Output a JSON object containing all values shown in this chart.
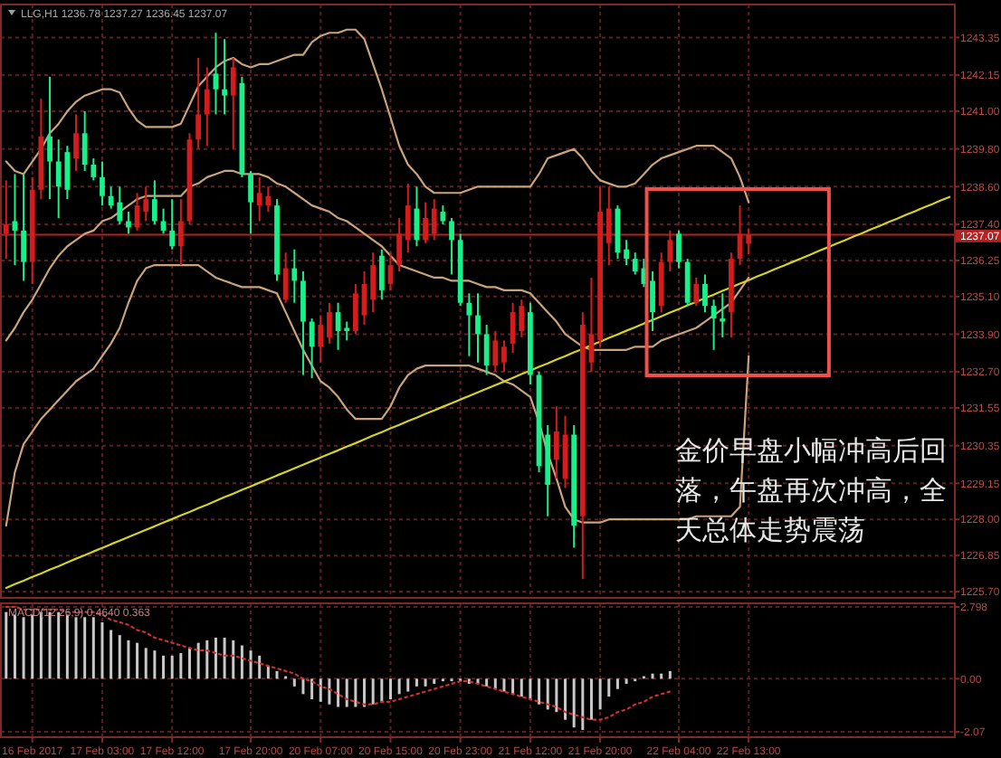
{
  "chart_data": [
    {
      "type": "candlestick",
      "title": "LLG,H1 1236.78 1237.27 1236.45 1237.07",
      "categories": [
        null,
        null,
        null,
        null,
        null,
        null,
        null,
        null,
        null,
        null,
        null,
        null,
        null,
        null,
        null,
        null,
        null,
        null,
        null,
        null,
        null,
        null,
        null,
        null,
        null,
        null,
        null,
        null,
        null,
        null,
        null,
        null,
        null,
        null,
        null,
        null,
        null,
        null,
        null,
        null,
        null,
        null,
        null,
        null,
        null,
        null,
        null,
        null,
        null,
        null,
        null,
        null,
        null,
        null,
        null,
        null,
        null,
        null,
        null,
        null,
        null,
        null,
        null,
        null,
        null,
        null,
        null,
        null,
        null,
        null,
        null,
        null,
        null,
        null,
        null,
        null,
        null,
        null,
        null,
        null,
        null,
        null,
        null,
        null,
        null,
        null,
        null,
        null,
        null,
        null,
        null,
        null,
        null,
        null,
        null,
        null,
        null,
        null,
        null,
        null,
        null,
        null,
        null,
        null,
        null,
        null,
        null,
        null,
        null
      ],
      "ohlc": [
        [
          1237.1,
          1238.8,
          1236.3,
          1237.4
        ],
        [
          1237.5,
          1239.0,
          1236.1,
          1237.2
        ],
        [
          1237.2,
          1239.0,
          1235.6,
          1236.2
        ],
        [
          1236.2,
          1238.9,
          1235.5,
          1238.5
        ],
        [
          1238.5,
          1241.4,
          1238.2,
          1240.2
        ],
        [
          1240.2,
          1242.1,
          1238.2,
          1239.4
        ],
        [
          1239.4,
          1240.1,
          1237.6,
          1238.6
        ],
        [
          1239.7,
          1239.9,
          1238.2,
          1238.5
        ],
        [
          1239.5,
          1240.9,
          1239.1,
          1240.3
        ],
        [
          1240.3,
          1241.0,
          1239.1,
          1239.3
        ],
        [
          1239.3,
          1239.5,
          1238.8,
          1238.9
        ],
        [
          1238.9,
          1239.4,
          1238.0,
          1238.3
        ],
        [
          1238.3,
          1238.6,
          1237.9,
          1238.0
        ],
        [
          1238.1,
          1238.6,
          1237.4,
          1237.5
        ],
        [
          1237.5,
          1237.8,
          1237.1,
          1237.3
        ],
        [
          1237.3,
          1238.4,
          1237.2,
          1238.0
        ],
        [
          1237.8,
          1238.6,
          1237.5,
          1238.2
        ],
        [
          1238.2,
          1238.8,
          1237.4,
          1237.5
        ],
        [
          1237.5,
          1237.9,
          1237.1,
          1237.2
        ],
        [
          1237.2,
          1238.2,
          1236.6,
          1236.7
        ],
        [
          1236.7,
          1238.2,
          1236.1,
          1237.5
        ],
        [
          1237.5,
          1240.3,
          1237.4,
          1240.1
        ],
        [
          1240.1,
          1242.7,
          1239.8,
          1240.9
        ],
        [
          1240.9,
          1242.4,
          1239.9,
          1241.7
        ],
        [
          1242.2,
          1243.5,
          1240.9,
          1241.7
        ],
        [
          1241.7,
          1243.3,
          1240.9,
          1241.5
        ],
        [
          1241.5,
          1242.7,
          1239.8,
          1242.4
        ],
        [
          1241.9,
          1242.1,
          1238.9,
          1239.0
        ],
        [
          1239.0,
          1239.1,
          1237.1,
          1238.1
        ],
        [
          1238.0,
          1238.9,
          1237.5,
          1238.4
        ],
        [
          1238.0,
          1238.6,
          1237.8,
          1238.3
        ],
        [
          1238.0,
          1238.2,
          1235.6,
          1235.8
        ],
        [
          1235.0,
          1236.5,
          1234.9,
          1236.0
        ],
        [
          1236.0,
          1236.6,
          1234.9,
          1235.6
        ],
        [
          1235.6,
          1235.9,
          1232.6,
          1234.3
        ],
        [
          1234.3,
          1234.4,
          1232.5,
          1233.5
        ],
        [
          1233.5,
          1234.5,
          1233.0,
          1234.2
        ],
        [
          1233.8,
          1234.9,
          1233.6,
          1234.6
        ],
        [
          1234.6,
          1234.9,
          1233.4,
          1234.0
        ],
        [
          1234.1,
          1234.3,
          1233.7,
          1234.0
        ],
        [
          1234.0,
          1235.5,
          1233.9,
          1235.2
        ],
        [
          1234.5,
          1235.9,
          1234.2,
          1235.5
        ],
        [
          1235.0,
          1236.5,
          1234.6,
          1236.1
        ],
        [
          1236.4,
          1236.6,
          1235.0,
          1235.3
        ],
        [
          1235.5,
          1236.5,
          1235.3,
          1236.1
        ],
        [
          1236.1,
          1237.6,
          1235.9,
          1237.1
        ],
        [
          1236.9,
          1238.7,
          1236.5,
          1238.0
        ],
        [
          1237.9,
          1238.6,
          1236.7,
          1236.9
        ],
        [
          1236.9,
          1238.1,
          1236.8,
          1237.6
        ],
        [
          1237.1,
          1238.2,
          1236.9,
          1237.9
        ],
        [
          1237.8,
          1238.0,
          1237.4,
          1237.5
        ],
        [
          1237.5,
          1237.6,
          1235.8,
          1236.9
        ],
        [
          1236.9,
          1237.1,
          1234.8,
          1234.9
        ],
        [
          1234.9,
          1235.2,
          1233.2,
          1234.5
        ],
        [
          1234.5,
          1235.2,
          1233.0,
          1233.9
        ],
        [
          1233.9,
          1234.2,
          1232.6,
          1232.9
        ],
        [
          1232.9,
          1234.0,
          1232.7,
          1233.7
        ],
        [
          1233.0,
          1233.7,
          1232.7,
          1233.5
        ],
        [
          1233.6,
          1234.9,
          1233.3,
          1234.6
        ],
        [
          1234.0,
          1235.0,
          1233.8,
          1234.8
        ],
        [
          1234.6,
          1234.9,
          1232.3,
          1232.6
        ],
        [
          1232.6,
          1232.7,
          1229.5,
          1229.7
        ],
        [
          1230.7,
          1231.0,
          1228.1,
          1229.1
        ],
        [
          1229.9,
          1231.6,
          1229.3,
          1230.8
        ],
        [
          1229.3,
          1231.3,
          1229.0,
          1230.7
        ],
        [
          1230.7,
          1231.0,
          1227.1,
          1227.8
        ],
        [
          1228.1,
          1234.6,
          1226.1,
          1234.2
        ],
        [
          1233.0,
          1235.7,
          1232.7,
          1233.9
        ],
        [
          1233.7,
          1238.6,
          1233.5,
          1237.8
        ],
        [
          1236.8,
          1238.6,
          1236.1,
          1237.9
        ],
        [
          1237.9,
          1238.0,
          1236.3,
          1236.5
        ],
        [
          1236.6,
          1236.9,
          1236.1,
          1236.3
        ],
        [
          1236.3,
          1236.5,
          1235.8,
          1235.9
        ],
        [
          1236.0,
          1236.3,
          1235.4,
          1235.5
        ],
        [
          1235.6,
          1235.9,
          1234.0,
          1234.6
        ],
        [
          1234.8,
          1236.5,
          1234.6,
          1236.2
        ],
        [
          1236.2,
          1237.2,
          1235.9,
          1236.9
        ],
        [
          1237.1,
          1237.2,
          1236.0,
          1236.2
        ],
        [
          1236.2,
          1236.3,
          1234.8,
          1234.9
        ],
        [
          1234.9,
          1235.7,
          1234.8,
          1235.5
        ],
        [
          1235.5,
          1235.8,
          1234.6,
          1234.8
        ],
        [
          1234.8,
          1235.0,
          1233.4,
          1234.4
        ],
        [
          1234.4,
          1235.2,
          1233.8,
          1234.3
        ],
        [
          1234.6,
          1236.5,
          1233.8,
          1236.3
        ],
        [
          1236.3,
          1238.0,
          1236.1,
          1237.1
        ],
        [
          1236.78,
          1237.27,
          1236.45,
          1237.07
        ],
        null,
        null,
        null,
        null,
        null,
        null,
        null,
        null,
        null,
        null,
        null,
        null,
        null,
        null,
        null,
        null,
        null,
        null,
        null,
        null,
        null,
        null,
        null
      ],
      "colors": [
        "#d41c1c",
        "#18f08a",
        "#18f08a",
        "#d41c1c",
        "#d41c1c",
        "#18f08a",
        "#18f08a",
        "#18f08a",
        "#d41c1c",
        "#18f08a",
        "#18f08a",
        "#18f08a",
        "#18f08a",
        "#18f08a",
        "#18f08a",
        "#d41c1c",
        "#d41c1c",
        "#18f08a",
        "#18f08a",
        "#18f08a",
        "#d41c1c",
        "#d41c1c",
        "#d41c1c",
        "#d41c1c",
        "#18f08a",
        "#18f08a",
        "#d41c1c",
        "#18f08a",
        "#18f08a",
        "#d41c1c",
        "#d41c1c",
        "#18f08a",
        "#d41c1c",
        "#18f08a",
        "#18f08a",
        "#18f08a",
        "#d41c1c",
        "#d41c1c",
        "#18f08a",
        "#18f08a",
        "#d41c1c",
        "#d41c1c",
        "#d41c1c",
        "#18f08a",
        "#d41c1c",
        "#d41c1c",
        "#d41c1c",
        "#18f08a",
        "#d41c1c",
        "#d41c1c",
        "#18f08a",
        "#18f08a",
        "#18f08a",
        "#18f08a",
        "#18f08a",
        "#18f08a",
        "#d41c1c",
        "#d41c1c",
        "#d41c1c",
        "#d41c1c",
        "#18f08a",
        "#18f08a",
        "#18f08a",
        "#d41c1c",
        "#d41c1c",
        "#18f08a",
        "#d41c1c",
        "#d41c1c",
        "#d41c1c",
        "#d41c1c",
        "#18f08a",
        "#18f08a",
        "#18f08a",
        "#18f08a",
        "#18f08a",
        "#d41c1c",
        "#d41c1c",
        "#18f08a",
        "#18f08a",
        "#d41c1c",
        "#18f08a",
        "#18f08a",
        "#18f08a",
        "#d41c1c",
        "#d41c1c",
        "#d41c1c",
        null,
        null,
        null,
        null,
        null,
        null,
        null,
        null,
        null,
        null,
        null,
        null,
        null,
        null,
        null,
        null,
        null,
        null,
        null,
        null,
        null,
        null,
        null
      ],
      "series": [
        {
          "type": "line",
          "color": "#c9a37c",
          "values": [
            1239.4,
            1239.1,
            1239.0,
            1239.4,
            1239.8,
            1240.3,
            1240.6,
            1241.0,
            1241.3,
            1241.5,
            1241.6,
            1241.7,
            1241.7,
            1241.6,
            1241.1,
            1240.7,
            1240.5,
            1240.5,
            1240.5,
            1240.5,
            1240.6,
            1241.2,
            1241.8,
            1242.1,
            1242.4,
            1242.6,
            1242.7,
            1242.5,
            1242.4,
            1242.5,
            1242.5,
            1242.6,
            1242.7,
            1242.8,
            1242.8,
            1243.2,
            1243.4,
            1243.5,
            1243.5,
            1243.6,
            1243.6,
            1243.3,
            1242.5,
            1241.7,
            1240.8,
            1239.9,
            1239.3,
            1239.0,
            1238.6,
            1238.4,
            1238.4,
            1238.4,
            1238.4,
            1238.5,
            1238.6,
            1238.6,
            1238.6,
            1238.6,
            1238.6,
            1238.6,
            1238.6,
            1239.0,
            1239.5,
            1239.6,
            1239.7,
            1239.8,
            1239.5,
            1239.1,
            1238.8,
            1238.7,
            1238.6,
            1238.6,
            1238.7,
            1239.0,
            1239.3,
            1239.5,
            1239.6,
            1239.7,
            1239.8,
            1239.9,
            1239.9,
            1239.9,
            1239.7,
            1239.5,
            1238.9,
            1238.1,
            null,
            null,
            null,
            null,
            null,
            null,
            null,
            null,
            null,
            null,
            null,
            null,
            null,
            null,
            null,
            null,
            null,
            null,
            null,
            null,
            null,
            null,
            null
          ]
        },
        {
          "type": "line",
          "color": "#c9a37c",
          "values": [
            1233.7,
            1234.1,
            1234.6,
            1235.0,
            1235.5,
            1236.0,
            1236.4,
            1236.7,
            1236.9,
            1237.1,
            1237.2,
            1237.5,
            1237.6,
            1237.8,
            1238.0,
            1238.2,
            1238.3,
            1238.3,
            1238.3,
            1238.3,
            1238.3,
            1238.6,
            1238.7,
            1238.9,
            1239.0,
            1239.1,
            1239.1,
            1239.0,
            1239.0,
            1239.0,
            1238.9,
            1238.7,
            1238.6,
            1238.4,
            1238.2,
            1238.0,
            1237.9,
            1237.8,
            1237.6,
            1237.5,
            1237.3,
            1237.1,
            1236.9,
            1236.7,
            1236.4,
            1236.1,
            1236.0,
            1235.9,
            1235.8,
            1235.7,
            1235.7,
            1235.6,
            1235.6,
            1235.6,
            1235.5,
            1235.4,
            1235.4,
            1235.3,
            1235.3,
            1235.3,
            1235.2,
            1234.9,
            1234.6,
            1234.3,
            1233.9,
            1233.7,
            1233.5,
            1233.4,
            1233.4,
            1233.4,
            1233.4,
            1233.4,
            1233.5,
            1233.5,
            1233.5,
            1233.7,
            1233.8,
            1233.9,
            1234.0,
            1234.1,
            1234.3,
            1234.5,
            1234.7,
            1234.9,
            1235.3,
            1235.7,
            null,
            null,
            null,
            null,
            null,
            null,
            null,
            null,
            null,
            null,
            null,
            null,
            null,
            null,
            null,
            null,
            null,
            null,
            null,
            null,
            null,
            null,
            null
          ]
        },
        {
          "type": "line",
          "color": "#c9a37c",
          "values": [
            1227.8,
            1229.5,
            1230.4,
            1230.8,
            1231.2,
            1231.5,
            1231.8,
            1232.1,
            1232.4,
            1232.6,
            1232.8,
            1233.2,
            1233.6,
            1234.1,
            1234.9,
            1235.6,
            1236.0,
            1236.1,
            1236.1,
            1236.1,
            1236.1,
            1236.1,
            1236.1,
            1235.9,
            1235.7,
            1235.6,
            1235.5,
            1235.4,
            1235.4,
            1235.4,
            1235.3,
            1235.2,
            1234.6,
            1234.0,
            1233.4,
            1232.9,
            1232.4,
            1232.2,
            1231.9,
            1231.5,
            1231.2,
            1231.2,
            1231.2,
            1231.2,
            1231.6,
            1232.2,
            1232.6,
            1232.8,
            1232.9,
            1232.9,
            1232.9,
            1232.9,
            1232.9,
            1232.9,
            1232.8,
            1232.7,
            1232.6,
            1232.4,
            1232.3,
            1232.1,
            1231.9,
            1231.1,
            1230.1,
            1229.3,
            1228.4,
            1228.0,
            1227.9,
            1227.9,
            1227.9,
            1228.0,
            1228.0,
            1228.0,
            1228.0,
            1228.0,
            1228.0,
            1228.0,
            1228.0,
            1228.0,
            1228.0,
            1228.1,
            1228.1,
            1228.1,
            1228.1,
            1228.1,
            1228.4,
            1233.2,
            null,
            null,
            null,
            null,
            null,
            null,
            null,
            null,
            null,
            null,
            null,
            null,
            null,
            null,
            null,
            null,
            null,
            null,
            null,
            null,
            null,
            null,
            null
          ]
        },
        {
          "type": "line",
          "color": "#d6d31e",
          "values": [
            1225.82,
            1225.94,
            1226.05,
            1226.17,
            1226.28,
            1226.4,
            1226.51,
            1226.63,
            1226.75,
            1226.86,
            1226.98,
            1227.09,
            1227.21,
            1227.32,
            1227.44,
            1227.55,
            1227.67,
            1227.78,
            1227.9,
            1228.01,
            1228.13,
            1228.24,
            1228.36,
            1228.47,
            1228.59,
            1228.71,
            1228.82,
            1228.94,
            1229.05,
            1229.17,
            1229.28,
            1229.4,
            1229.51,
            1229.63,
            1229.74,
            1229.86,
            1229.97,
            1230.09,
            1230.2,
            1230.32,
            1230.43,
            1230.55,
            1230.67,
            1230.78,
            1230.9,
            1231.01,
            1231.13,
            1231.24,
            1231.36,
            1231.47,
            1231.59,
            1231.7,
            1231.82,
            1231.93,
            1232.05,
            1232.16,
            1232.28,
            1232.39,
            1232.51,
            1232.63,
            1232.74,
            1232.86,
            1232.97,
            1233.09,
            1233.2,
            1233.32,
            1233.43,
            1233.55,
            1233.66,
            1233.78,
            1233.89,
            1234.01,
            1234.12,
            1234.24,
            1234.35,
            1234.47,
            1234.59,
            1234.7,
            1234.82,
            1234.93,
            1235.05,
            1235.16,
            1235.28,
            1235.39,
            1235.51,
            1235.62,
            1235.74,
            1235.85,
            1235.97,
            1236.08,
            1236.2,
            1236.31,
            1236.43,
            1236.55,
            1236.66,
            1236.78,
            1236.89,
            1237.01,
            1237.12,
            1237.24,
            1237.35,
            1237.47,
            1237.58,
            1237.7,
            1237.81,
            1237.93,
            1238.04,
            1238.16,
            1238.27
          ]
        }
      ],
      "ylim": [
        1225.5,
        1244.4
      ],
      "yticks": [
        1243.35,
        1242.15,
        {
          "value": 1241.0,
          "label": "1241.00"
        },
        {
          "value": 1239.8,
          "label": "1239.80"
        },
        {
          "value": 1238.6,
          "label": "1238.60"
        },
        {
          "value": 1237.4,
          "label": "1237.40"
        },
        1236.25,
        {
          "value": 1235.1,
          "label": "1235.10"
        },
        {
          "value": 1233.9,
          "label": "1233.90"
        },
        {
          "value": 1232.7,
          "label": "1232.70"
        },
        1231.55,
        1230.35,
        1229.15,
        {
          "value": 1228.0,
          "label": "1228.00"
        },
        1226.85,
        {
          "value": 1225.7,
          "label": "1225.70"
        }
      ],
      "ref_lines": [
        {
          "axis": "y",
          "value": 1237.07,
          "label": "1237.07",
          "color": "#b22222"
        }
      ],
      "grid": true,
      "annotations": [
        "金价早盘小幅冲高后回落，午盘再次冲高，全天总体走势震荡"
      ]
    },
    {
      "type": "bar",
      "title": "MACD(12,26,9) 0.4640 0.363",
      "categories": [
        null,
        null,
        null,
        "16 Feb 2017",
        null,
        null,
        null,
        null,
        null,
        null,
        null,
        "17 Feb 03:00",
        null,
        null,
        null,
        null,
        null,
        null,
        null,
        "17 Feb 12:00",
        null,
        null,
        null,
        null,
        null,
        null,
        null,
        null,
        "17 Feb 20:00",
        null,
        null,
        null,
        null,
        null,
        null,
        null,
        "20 Feb 07:00",
        null,
        null,
        null,
        null,
        null,
        null,
        null,
        "20 Feb 15:00",
        null,
        null,
        null,
        null,
        null,
        null,
        null,
        "20 Feb 23:00",
        null,
        null,
        null,
        null,
        null,
        null,
        null,
        "21 Feb 12:00",
        null,
        null,
        null,
        null,
        null,
        null,
        null,
        "21 Feb 20:00",
        null,
        null,
        null,
        null,
        null,
        null,
        null,
        null,
        "22 Feb 04:00",
        null,
        null,
        null,
        null,
        null,
        null,
        null,
        "22 Feb 13:00",
        null,
        null,
        null,
        null,
        null,
        null,
        null,
        null,
        null,
        null,
        null,
        null,
        null,
        null,
        null,
        null,
        null,
        null,
        null,
        null,
        null,
        null,
        null
      ],
      "series": [
        {
          "color": "#c8c8c8",
          "values": [
            2.6,
            2.5,
            2.4,
            2.5,
            2.6,
            2.6,
            2.6,
            2.5,
            2.4,
            2.4,
            2.4,
            2.2,
            1.9,
            1.7,
            1.5,
            1.4,
            1.2,
            1.1,
            0.9,
            0.9,
            1.0,
            1.2,
            1.4,
            1.5,
            1.6,
            1.6,
            1.5,
            1.3,
            1.1,
            0.9,
            0.5,
            0.3,
            0.1,
            -0.3,
            -0.6,
            -0.8,
            -0.9,
            -1.0,
            -1.1,
            -1.1,
            -1.1,
            -1.1,
            -1.0,
            -0.9,
            -0.8,
            -0.6,
            -0.5,
            -0.3,
            -0.3,
            -0.2,
            -0.1,
            -0.1,
            -0.1,
            -0.2,
            -0.2,
            -0.3,
            -0.4,
            -0.5,
            -0.6,
            -0.7,
            -0.8,
            -1.0,
            -1.2,
            -1.3,
            -1.6,
            -1.9,
            -2.0,
            -1.6,
            -1.2,
            -0.7,
            -0.4,
            -0.2,
            -0.1,
            0.1,
            0.2,
            0.2,
            0.3,
            null,
            null,
            null,
            null,
            null,
            null,
            null,
            null,
            null,
            null,
            null,
            null,
            null,
            null,
            null,
            null,
            null,
            null,
            null,
            null,
            null,
            null,
            null,
            null,
            null,
            null,
            null,
            null,
            null,
            null,
            null,
            null
          ]
        },
        {
          "type": "line",
          "color": "#d03030",
          "line_style": "dotted",
          "values": [
            2.8,
            2.8,
            2.7,
            2.7,
            2.7,
            2.7,
            2.7,
            2.6,
            2.6,
            2.6,
            2.6,
            2.5,
            2.3,
            2.2,
            2.1,
            1.9,
            1.8,
            1.6,
            1.5,
            1.4,
            1.3,
            1.2,
            1.1,
            1.1,
            1.0,
            0.9,
            0.9,
            0.8,
            0.7,
            0.6,
            0.5,
            0.4,
            0.3,
            0.2,
            0.0,
            -0.1,
            -0.3,
            -0.4,
            -0.6,
            -0.8,
            -0.9,
            -1.0,
            -1.0,
            -0.9,
            -0.9,
            -0.8,
            -0.7,
            -0.6,
            -0.5,
            -0.4,
            -0.3,
            -0.2,
            -0.1,
            -0.1,
            -0.2,
            -0.3,
            -0.4,
            -0.5,
            -0.6,
            -0.7,
            -0.8,
            -0.9,
            -1.0,
            -1.1,
            -1.3,
            -1.4,
            -1.5,
            -1.6,
            -1.6,
            -1.5,
            -1.3,
            -1.2,
            -1.0,
            -0.9,
            -0.7,
            -0.6,
            -0.5,
            null,
            null,
            null,
            null,
            null,
            null,
            null,
            null,
            null,
            null,
            null,
            null,
            null,
            null,
            null,
            null,
            null,
            null,
            null,
            null,
            null,
            null,
            null,
            null,
            null,
            null,
            null,
            null,
            null,
            null,
            null,
            null
          ]
        }
      ],
      "ylim": [
        -2.28,
        2.94
      ],
      "yticks": [
        2.798,
        {
          "value": 0,
          "label": "0.00"
        },
        -2.07
      ],
      "grid": true
    }
  ]
}
